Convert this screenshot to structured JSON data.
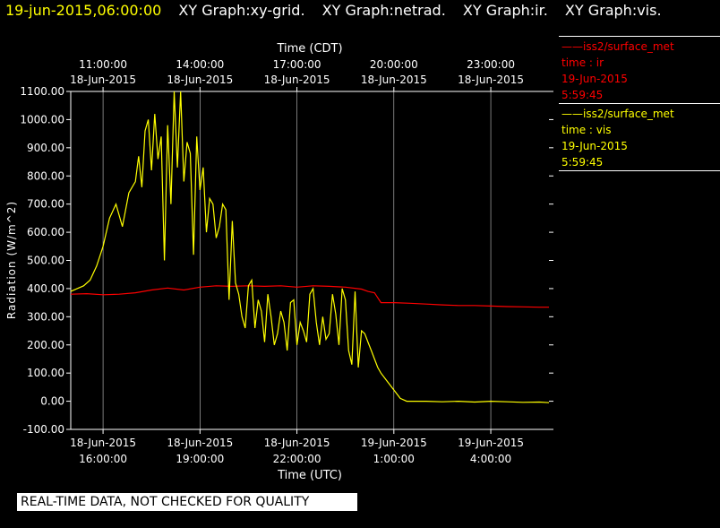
{
  "header": {
    "timestamp": "19-jun-2015,06:00:00",
    "graphs": [
      "XY Graph:xy-grid.",
      "XY Graph:netrad.",
      "XY Graph:ir.",
      "XY Graph:vis."
    ]
  },
  "legend": [
    {
      "line": "——iss2/surface_met",
      "var": "time : ir",
      "date": "19-Jun-2015",
      "time": "5:59:45",
      "color": "#ff0000"
    },
    {
      "line": "——iss2/surface_met",
      "var": "time : vis",
      "date": "19-Jun-2015",
      "time": "5:59:45",
      "color": "#ffff00"
    }
  ],
  "banner": "REAL-TIME DATA, NOT CHECKED FOR QUALITY",
  "chart_data": {
    "type": "line",
    "xlabel": "Time (UTC)",
    "x2label": "Time (CDT)",
    "ylabel": "Radiation (W/m^2)",
    "ylim": [
      -100,
      1100
    ],
    "xlim_hours_utc": [
      15,
      29.8
    ],
    "grid": true,
    "y_ticks": [
      "1100.00",
      "1000.00",
      "900.00",
      "800.00",
      "700.00",
      "600.00",
      "500.00",
      "400.00",
      "300.00",
      "200.00",
      "100.00",
      "0.00",
      "-100.00"
    ],
    "x_ticks_utc": [
      {
        "date": "18-Jun-2015",
        "time": "16:00:00"
      },
      {
        "date": "18-Jun-2015",
        "time": "19:00:00"
      },
      {
        "date": "18-Jun-2015",
        "time": "22:00:00"
      },
      {
        "date": "19-Jun-2015",
        "time": "1:00:00"
      },
      {
        "date": "19-Jun-2015",
        "time": "4:00:00"
      }
    ],
    "x_ticks_cdt": [
      {
        "time": "11:00:00",
        "date": "18-Jun-2015"
      },
      {
        "time": "14:00:00",
        "date": "18-Jun-2015"
      },
      {
        "time": "17:00:00",
        "date": "18-Jun-2015"
      },
      {
        "time": "20:00:00",
        "date": "18-Jun-2015"
      },
      {
        "time": "23:00:00",
        "date": "18-Jun-2015"
      }
    ],
    "series": [
      {
        "name": "time : ir",
        "color": "#ff0000",
        "x": [
          15.0,
          15.5,
          16.0,
          16.5,
          17.0,
          17.5,
          18.0,
          18.5,
          19.0,
          19.5,
          20.0,
          20.5,
          21.0,
          21.5,
          22.0,
          22.5,
          23.0,
          23.5,
          24.0,
          24.2,
          24.4,
          24.6,
          24.8,
          25.0,
          25.5,
          26.0,
          26.5,
          27.0,
          27.5,
          28.0,
          28.5,
          29.0,
          29.5,
          29.8
        ],
        "y": [
          380,
          382,
          378,
          380,
          385,
          395,
          402,
          395,
          405,
          410,
          408,
          410,
          408,
          410,
          405,
          410,
          408,
          405,
          398,
          390,
          385,
          350,
          350,
          350,
          348,
          345,
          342,
          340,
          340,
          338,
          336,
          335,
          334,
          334
        ]
      },
      {
        "name": "time : vis",
        "color": "#ffff00",
        "x": [
          15.0,
          15.2,
          15.4,
          15.6,
          15.8,
          16.0,
          16.2,
          16.4,
          16.6,
          16.8,
          17.0,
          17.1,
          17.2,
          17.3,
          17.4,
          17.5,
          17.6,
          17.7,
          17.8,
          17.9,
          18.0,
          18.1,
          18.2,
          18.3,
          18.4,
          18.5,
          18.6,
          18.7,
          18.8,
          18.9,
          19.0,
          19.1,
          19.2,
          19.3,
          19.4,
          19.5,
          19.6,
          19.7,
          19.8,
          19.9,
          20.0,
          20.1,
          20.2,
          20.3,
          20.4,
          20.5,
          20.6,
          20.7,
          20.8,
          20.9,
          21.0,
          21.1,
          21.2,
          21.3,
          21.4,
          21.5,
          21.6,
          21.7,
          21.8,
          21.9,
          22.0,
          22.1,
          22.2,
          22.3,
          22.4,
          22.5,
          22.6,
          22.7,
          22.8,
          22.9,
          23.0,
          23.1,
          23.2,
          23.3,
          23.4,
          23.5,
          23.6,
          23.7,
          23.8,
          23.9,
          24.0,
          24.1,
          24.2,
          24.3,
          24.4,
          24.5,
          24.6,
          24.8,
          25.0,
          25.2,
          25.4,
          25.6,
          25.8,
          26.0,
          26.5,
          27.0,
          27.5,
          28.0,
          28.5,
          29.0,
          29.5,
          29.8
        ],
        "y": [
          390,
          400,
          410,
          430,
          480,
          550,
          650,
          700,
          620,
          740,
          780,
          870,
          760,
          960,
          1000,
          820,
          1020,
          860,
          940,
          500,
          980,
          700,
          1100,
          830,
          1100,
          780,
          920,
          880,
          520,
          940,
          750,
          830,
          600,
          720,
          700,
          580,
          620,
          700,
          680,
          360,
          640,
          420,
          380,
          300,
          260,
          410,
          430,
          260,
          360,
          320,
          210,
          380,
          300,
          200,
          240,
          320,
          280,
          180,
          350,
          360,
          200,
          280,
          250,
          210,
          380,
          400,
          280,
          200,
          300,
          220,
          240,
          380,
          310,
          200,
          400,
          360,
          180,
          130,
          390,
          120,
          250,
          240,
          210,
          180,
          150,
          120,
          100,
          70,
          40,
          10,
          0,
          0,
          0,
          0,
          -2,
          0,
          -3,
          0,
          -2,
          -4,
          -3,
          -5
        ]
      }
    ]
  }
}
